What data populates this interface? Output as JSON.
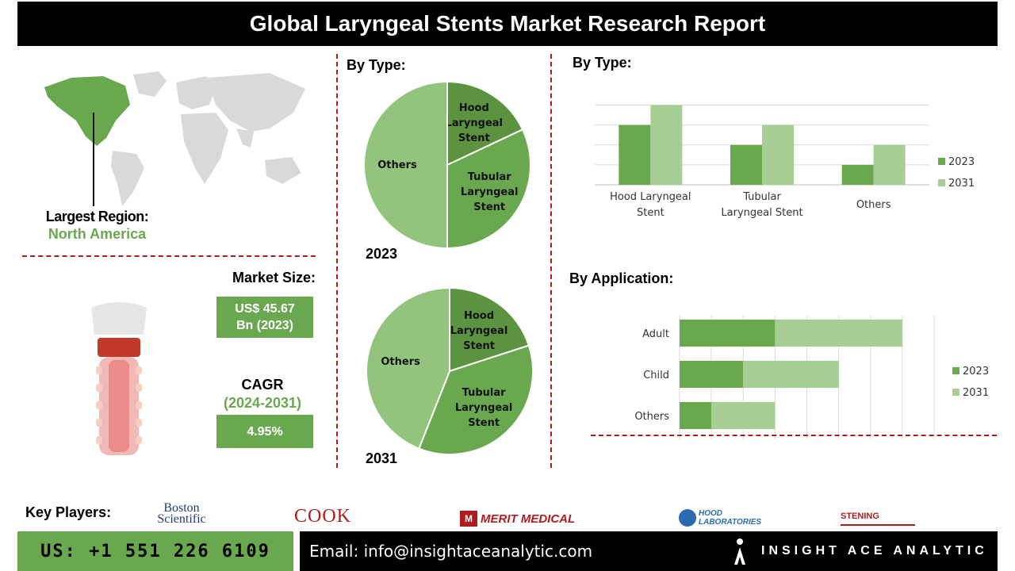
{
  "header": {
    "title": "Global Laryngeal Stents Market Research Report"
  },
  "region": {
    "label": "Largest Region:",
    "value": "North America"
  },
  "market_size": {
    "label": "Market Size:",
    "value_line1": "US$ 45.67",
    "value_line2": "Bn (2023)"
  },
  "cagr": {
    "label": "CAGR",
    "period": "(2024-2031)",
    "value": "4.95%"
  },
  "pie_section": {
    "title": "By Type:",
    "year_top": "2023",
    "year_bottom": "2031"
  },
  "bar_type_section": {
    "title": "By Type:"
  },
  "bar_app_section": {
    "title": "By Application:"
  },
  "key_players": {
    "label": "Key Players:",
    "logos": [
      "Boston Scientific",
      "COOK",
      "MERIT MEDICAL",
      "HOOD LABORATORIES",
      "STENING"
    ]
  },
  "footer": {
    "phone": "US: +1 551 226 6109",
    "email": "Email: info@insightaceanalytic.com",
    "brand": "INSIGHT ACE ANALYTIC"
  },
  "colors": {
    "dark_green": "#5b9340",
    "mid_green": "#6aa84f",
    "light_green": "#93c47d",
    "pale_green": "#a8cf93",
    "accent_red": "#b01c1c"
  },
  "chart_data": [
    {
      "type": "pie",
      "year": "2023",
      "categories": [
        "Hood Laryngeal Stent",
        "Tubular Laryngeal Stent",
        "Others"
      ],
      "values": [
        18,
        32,
        50
      ]
    },
    {
      "type": "pie",
      "year": "2031",
      "categories": [
        "Hood Laryngeal Stent",
        "Tubular Laryngeal Stent",
        "Others"
      ],
      "values": [
        20,
        36,
        44
      ]
    },
    {
      "type": "bar",
      "categories": [
        "Hood Laryngeal Stent",
        "Tubular Laryngeal Stent",
        "Others"
      ],
      "series": [
        {
          "name": "2023",
          "values": [
            3,
            2,
            1
          ]
        },
        {
          "name": "2031",
          "values": [
            4,
            3,
            2
          ]
        }
      ],
      "ylim": [
        0,
        4.5
      ],
      "grid": true,
      "legend": "right"
    },
    {
      "type": "bar",
      "orientation": "horizontal-stacked",
      "categories": [
        "Adult",
        "Child",
        "Others"
      ],
      "series": [
        {
          "name": "2023",
          "values": [
            3,
            2,
            1
          ]
        },
        {
          "name": "2031",
          "values": [
            4,
            3,
            2
          ]
        }
      ],
      "xlim": [
        0,
        8
      ],
      "grid": true,
      "legend": "right"
    }
  ]
}
